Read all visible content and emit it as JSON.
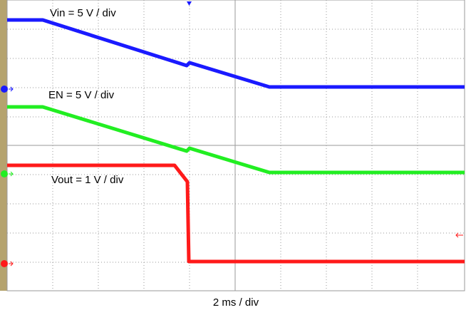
{
  "traces": [
    {
      "label": "Vin = 5 V / div"
    },
    {
      "label": "EN = 5 V / div"
    },
    {
      "label": "Vout = 1 V / div"
    }
  ],
  "timebase": "2 ms / div"
}
